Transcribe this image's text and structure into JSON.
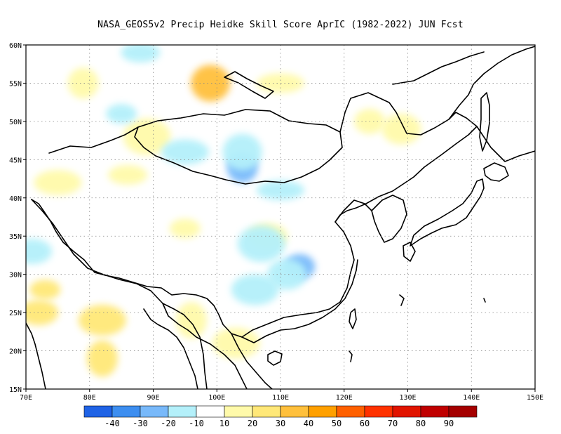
{
  "title": "NASA_GEOS5v2 Precip Heidke Skill Score AprIC (1982-2022) JUN Fcst",
  "map": {
    "lon_range": [
      70,
      150
    ],
    "lat_range": [
      15,
      60
    ],
    "x_ticks": [
      "70E",
      "80E",
      "90E",
      "100E",
      "110E",
      "120E",
      "130E",
      "140E",
      "150E"
    ],
    "y_ticks": [
      "15N",
      "20N",
      "25N",
      "30N",
      "35N",
      "40N",
      "45N",
      "50N",
      "55N",
      "60N"
    ],
    "grid": "dotted"
  },
  "colorbar": {
    "labels": [
      "-40",
      "-30",
      "-20",
      "-10",
      "10",
      "20",
      "30",
      "40",
      "50",
      "60",
      "70",
      "80",
      "90"
    ],
    "colors": [
      "#1f63e6",
      "#3d8ef0",
      "#78b9fa",
      "#b4f0fa",
      "#ffffff",
      "#fffaaa",
      "#ffe878",
      "#ffc03c",
      "#ffa000",
      "#ff6000",
      "#ff3200",
      "#e11400",
      "#c00000",
      "#a50000"
    ]
  },
  "chart_data": {
    "type": "heatmap",
    "title": "NASA_GEOS5v2 Precip Heidke Skill Score AprIC (1982-2022) JUN Fcst",
    "variable": "Precip Heidke Skill Score",
    "x_range": [
      70,
      150
    ],
    "y_range": [
      15,
      60
    ],
    "levels": [
      -40,
      -30,
      -20,
      -10,
      10,
      20,
      30,
      40,
      50,
      60,
      70,
      80,
      90
    ],
    "patches": [
      {
        "lon": 73,
        "lat": 28,
        "value": 25
      },
      {
        "lon": 72,
        "lat": 25,
        "value": 20
      },
      {
        "lon": 82,
        "lat": 24,
        "value": 22
      },
      {
        "lon": 82,
        "lat": 19,
        "value": 25
      },
      {
        "lon": 86,
        "lat": 43,
        "value": 15
      },
      {
        "lon": 75,
        "lat": 42,
        "value": 15
      },
      {
        "lon": 79,
        "lat": 55,
        "value": 15
      },
      {
        "lon": 99,
        "lat": 55,
        "value": 30
      },
      {
        "lon": 110,
        "lat": 55,
        "value": 15
      },
      {
        "lon": 124,
        "lat": 50,
        "value": 15
      },
      {
        "lon": 129,
        "lat": 49,
        "value": 15
      },
      {
        "lon": 89,
        "lat": 48,
        "value": 15
      },
      {
        "lon": 95,
        "lat": 36,
        "value": 15
      },
      {
        "lon": 108,
        "lat": 35,
        "value": 15
      },
      {
        "lon": 103,
        "lat": 21,
        "value": 15
      },
      {
        "lon": 96,
        "lat": 24,
        "value": 15
      },
      {
        "lon": 88,
        "lat": 59,
        "value": -15
      },
      {
        "lon": 95,
        "lat": 46,
        "value": -15
      },
      {
        "lon": 104,
        "lat": 44,
        "value": -30
      },
      {
        "lon": 104,
        "lat": 46,
        "value": -15
      },
      {
        "lon": 110,
        "lat": 41,
        "value": -20
      },
      {
        "lon": 113,
        "lat": 31,
        "value": -25
      },
      {
        "lon": 111,
        "lat": 30,
        "value": -15
      },
      {
        "lon": 107,
        "lat": 34,
        "value": -15
      },
      {
        "lon": 85,
        "lat": 51,
        "value": -15
      },
      {
        "lon": 71,
        "lat": 33,
        "value": -15
      },
      {
        "lon": 106,
        "lat": 28,
        "value": -15
      }
    ]
  }
}
